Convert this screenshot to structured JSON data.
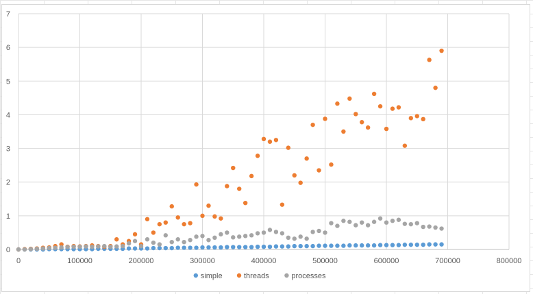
{
  "chart_data": {
    "type": "scatter",
    "title": "",
    "xlabel": "",
    "ylabel": "",
    "xlim": [
      0,
      800000
    ],
    "ylim": [
      0,
      7
    ],
    "xticks": [
      "0",
      "100000",
      "200000",
      "300000",
      "400000",
      "500000",
      "600000",
      "700000",
      "800000"
    ],
    "yticks": [
      "0",
      "1",
      "2",
      "3",
      "4",
      "5",
      "6",
      "7"
    ],
    "grid": true,
    "legend": "bottom",
    "series": [
      {
        "name": "simple",
        "color": "#5B9BD5",
        "x": [
          0,
          10000,
          20000,
          30000,
          40000,
          50000,
          60000,
          70000,
          80000,
          90000,
          100000,
          110000,
          120000,
          130000,
          140000,
          150000,
          160000,
          170000,
          180000,
          190000,
          200000,
          210000,
          220000,
          230000,
          240000,
          250000,
          260000,
          270000,
          280000,
          290000,
          300000,
          310000,
          320000,
          330000,
          340000,
          350000,
          360000,
          370000,
          380000,
          390000,
          400000,
          410000,
          420000,
          430000,
          440000,
          450000,
          460000,
          470000,
          480000,
          490000,
          500000,
          510000,
          520000,
          530000,
          540000,
          550000,
          560000,
          570000,
          580000,
          590000,
          600000,
          610000,
          620000,
          630000,
          640000,
          650000,
          660000,
          670000,
          680000,
          690000
        ],
        "y": [
          0,
          0,
          0,
          0,
          0,
          0.01,
          0.01,
          0.01,
          0.01,
          0.01,
          0.01,
          0.01,
          0.01,
          0.02,
          0.02,
          0.02,
          0.02,
          0.02,
          0.03,
          0.03,
          0.03,
          0.03,
          0.04,
          0.04,
          0.04,
          0.04,
          0.05,
          0.05,
          0.05,
          0.05,
          0.06,
          0.06,
          0.06,
          0.06,
          0.07,
          0.07,
          0.07,
          0.07,
          0.07,
          0.08,
          0.08,
          0.08,
          0.09,
          0.09,
          0.09,
          0.1,
          0.1,
          0.1,
          0.1,
          0.11,
          0.11,
          0.11,
          0.11,
          0.11,
          0.12,
          0.12,
          0.12,
          0.12,
          0.12,
          0.13,
          0.13,
          0.13,
          0.13,
          0.14,
          0.14,
          0.14,
          0.14,
          0.15,
          0.15,
          0.15
        ]
      },
      {
        "name": "threads",
        "color": "#ED7D31",
        "x": [
          0,
          10000,
          20000,
          30000,
          40000,
          50000,
          60000,
          70000,
          80000,
          90000,
          100000,
          110000,
          120000,
          130000,
          140000,
          150000,
          160000,
          170000,
          180000,
          190000,
          200000,
          210000,
          220000,
          230000,
          240000,
          250000,
          260000,
          270000,
          280000,
          290000,
          300000,
          310000,
          320000,
          330000,
          340000,
          350000,
          360000,
          370000,
          380000,
          390000,
          400000,
          410000,
          420000,
          430000,
          440000,
          450000,
          460000,
          470000,
          480000,
          490000,
          500000,
          510000,
          520000,
          530000,
          540000,
          550000,
          560000,
          570000,
          580000,
          590000,
          600000,
          610000,
          620000,
          630000,
          640000,
          650000,
          660000,
          670000,
          680000,
          690000
        ],
        "y": [
          0,
          0.01,
          0.02,
          0.03,
          0.05,
          0.06,
          0.1,
          0.15,
          0.08,
          0.1,
          0.09,
          0.1,
          0.12,
          0.1,
          0.08,
          0.1,
          0.3,
          0.15,
          0.25,
          0.45,
          0.15,
          0.9,
          0.5,
          0.75,
          0.8,
          1.28,
          0.95,
          0.75,
          0.78,
          1.93,
          1.0,
          1.3,
          0.98,
          0.92,
          1.88,
          2.42,
          1.8,
          1.38,
          2.18,
          2.78,
          3.28,
          3.2,
          3.25,
          1.33,
          3.02,
          2.2,
          1.98,
          2.7,
          3.7,
          2.35,
          3.88,
          2.52,
          4.33,
          3.5,
          4.48,
          4.02,
          3.78,
          3.62,
          4.62,
          4.25,
          3.58,
          4.18,
          4.22,
          3.08,
          3.9,
          3.96,
          3.87,
          5.63,
          4.8,
          5.9
        ]
      },
      {
        "name": "processes",
        "color": "#A5A5A5",
        "x": [
          0,
          10000,
          20000,
          30000,
          40000,
          50000,
          60000,
          70000,
          80000,
          90000,
          100000,
          110000,
          120000,
          130000,
          140000,
          150000,
          160000,
          170000,
          180000,
          190000,
          200000,
          210000,
          220000,
          230000,
          240000,
          250000,
          260000,
          270000,
          280000,
          290000,
          300000,
          310000,
          320000,
          330000,
          340000,
          350000,
          360000,
          370000,
          380000,
          390000,
          400000,
          410000,
          420000,
          430000,
          440000,
          450000,
          460000,
          470000,
          480000,
          490000,
          500000,
          510000,
          520000,
          530000,
          540000,
          550000,
          560000,
          570000,
          580000,
          590000,
          600000,
          610000,
          620000,
          630000,
          640000,
          650000,
          660000,
          670000,
          680000,
          690000
        ],
        "y": [
          0,
          0,
          0.01,
          0.02,
          0.03,
          0.04,
          0.05,
          0.06,
          0.07,
          0.08,
          0.08,
          0.09,
          0.08,
          0.09,
          0.1,
          0.08,
          0.09,
          0.1,
          0.18,
          0.25,
          0.1,
          0.3,
          0.2,
          0.15,
          0.42,
          0.22,
          0.3,
          0.22,
          0.28,
          0.38,
          0.4,
          0.28,
          0.35,
          0.45,
          0.5,
          0.36,
          0.38,
          0.4,
          0.42,
          0.48,
          0.5,
          0.58,
          0.52,
          0.48,
          0.35,
          0.32,
          0.38,
          0.32,
          0.52,
          0.55,
          0.5,
          0.78,
          0.7,
          0.85,
          0.82,
          0.72,
          0.8,
          0.72,
          0.82,
          0.92,
          0.8,
          0.85,
          0.88,
          0.76,
          0.75,
          0.78,
          0.67,
          0.68,
          0.65,
          0.62
        ]
      }
    ]
  }
}
